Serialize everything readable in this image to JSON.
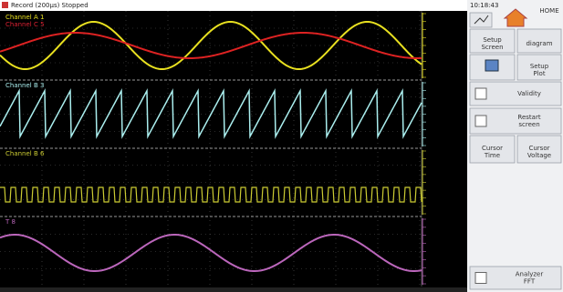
{
  "header": {
    "title": "Record (200µs) Stopped",
    "time": "10:18:43"
  },
  "channels": [
    {
      "label": "Channel A 1"
    },
    {
      "label": "Channel C 5"
    },
    {
      "label": "Channel B 3"
    },
    {
      "label": "Channel B 6"
    },
    {
      "label": "T 8"
    }
  ],
  "home": "HOME",
  "buttons": [
    {
      "lines": [
        "Setup",
        "Screen"
      ]
    },
    {
      "lines": [
        "diagram"
      ]
    },
    {
      "lines": [
        "Setup",
        "Plot"
      ]
    },
    {
      "lines": [
        "Validity"
      ]
    },
    {
      "lines": [
        "Restart",
        "screen"
      ]
    },
    {
      "lines": [
        "Cursor",
        "Time"
      ]
    },
    {
      "lines": [
        "Cursor",
        "Voltage"
      ]
    },
    {
      "lines": [
        "Analyzer",
        "FFT"
      ]
    }
  ]
}
